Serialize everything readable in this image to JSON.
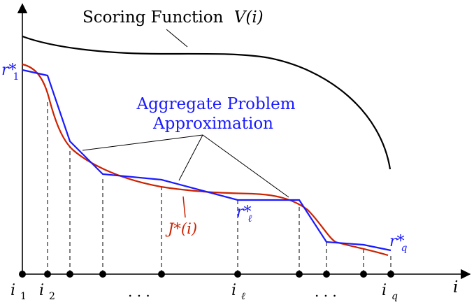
{
  "title_text": "Scoring Function",
  "title_math": "V(i)",
  "aggregate_label_line1": "Aggregate Problem",
  "aggregate_label_line2": "Approximation",
  "j_star_label": "J*(i)",
  "r1_label": "r*",
  "r1_sub": "1",
  "rl_label": "r*",
  "rl_sub": "ℓ",
  "rq_label": "r*",
  "rq_sub": "q",
  "x_axis_label": "i",
  "tick_i1": "i",
  "tick_i1_sub": "1",
  "tick_i2": "i",
  "tick_i2_sub": "2",
  "tick_il": "i",
  "tick_il_sub": "ℓ",
  "tick_iq": "i",
  "tick_iq_sub": "q",
  "dots_left": ". . .",
  "dots_right": ". . .",
  "colors": {
    "axis": "#000000",
    "scoring": "#000000",
    "aggregate": "#1a1aff",
    "jstar": "#cc2200"
  }
}
